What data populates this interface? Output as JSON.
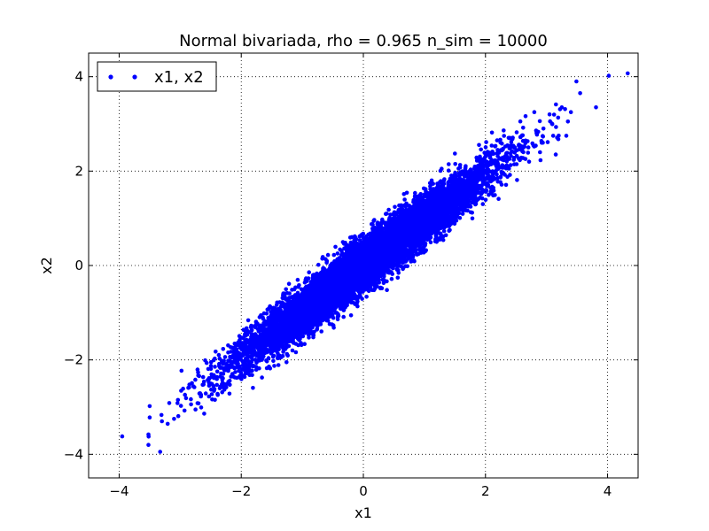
{
  "chart_data": {
    "type": "scatter",
    "title": "Normal bivariada, rho = 0.965 n_sim = 10000",
    "xlabel": "x1",
    "ylabel": "x2",
    "xlim": [
      -4.5,
      4.5
    ],
    "ylim": [
      -4.5,
      4.5
    ],
    "xticks": [
      -4,
      -2,
      0,
      2,
      4
    ],
    "yticks": [
      -4,
      -2,
      0,
      2,
      4
    ],
    "xtick_labels": [
      "−4",
      "−2",
      "0",
      "2",
      "4"
    ],
    "ytick_labels": [
      "−4",
      "−2",
      "0",
      "2",
      "4"
    ],
    "grid": true,
    "legend_position": "top-left",
    "n_points": 10000,
    "rho": 0.965,
    "series": [
      {
        "name": "x1, x2",
        "color": "#0000ff",
        "marker": "circle",
        "outliers": [
          [
            -3.95,
            -3.62
          ],
          [
            -3.52,
            -3.8
          ],
          [
            -3.52,
            -3.58
          ],
          [
            -3.5,
            -3.22
          ],
          [
            -3.5,
            -2.98
          ],
          [
            -3.3,
            -3.3
          ],
          [
            -3.1,
            -3.25
          ],
          [
            -2.75,
            -3.05
          ],
          [
            4.33,
            4.07
          ],
          [
            4.02,
            4.02
          ],
          [
            3.81,
            3.35
          ],
          [
            3.49,
            3.9
          ],
          [
            3.55,
            3.65
          ],
          [
            3.25,
            3.35
          ],
          [
            3.05,
            3.2
          ],
          [
            2.8,
            3.25
          ],
          [
            3.35,
            3.05
          ],
          [
            3.4,
            3.25
          ],
          [
            3.2,
            2.75
          ],
          [
            2.95,
            2.9
          ]
        ]
      }
    ]
  }
}
